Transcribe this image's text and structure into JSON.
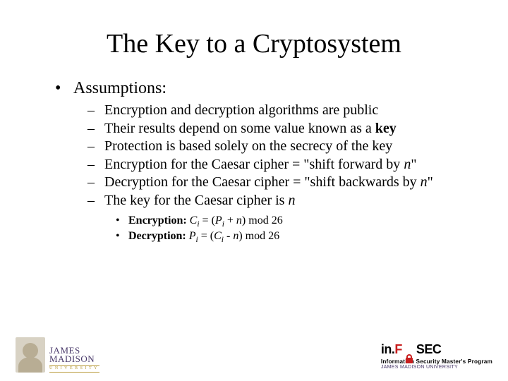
{
  "title": "The Key to a Cryptosystem",
  "lvl1": {
    "text": "Assumptions:"
  },
  "items": {
    "a": "Encryption and decryption algorithms are public",
    "b_pre": "Their results depend on some value known as a ",
    "b_bold": "key",
    "c": "Protection is based solely on the secrecy of the key",
    "d_pre": "Encryption for the Caesar cipher = \"shift forward by ",
    "d_it": "n",
    "d_post": "\"",
    "e_pre": "Decryption for the Caesar cipher = \"shift backwards by ",
    "e_it": "n",
    "e_post": "\"",
    "f_pre": "The key for the Caesar cipher is ",
    "f_it": "n"
  },
  "formulas": {
    "enc_label": "Encryption: ",
    "enc_C": "C",
    "enc_i1": "i",
    "enc_eq": " = (",
    "enc_P": "P",
    "enc_i2": "i",
    "enc_plus": " + ",
    "enc_n": "n",
    "enc_mod": ") mod 26",
    "dec_label": "Decryption: ",
    "dec_P": "P",
    "dec_i1": "i",
    "dec_eq": " = (",
    "dec_C": "C",
    "dec_i2": "i",
    "dec_minus": " - ",
    "dec_n": "n",
    "dec_mod": ") mod 26"
  },
  "footer": {
    "jmu1": "JAMES",
    "jmu2": "MADISON",
    "jmu3": "UNIVERSITY",
    "infosec_in": "in.",
    "infosec_f": "F",
    "infosec_sec": "SEC",
    "sub1": "Information Security Master's Program",
    "sub2": "JAMES MADISON UNIVERSITY"
  }
}
